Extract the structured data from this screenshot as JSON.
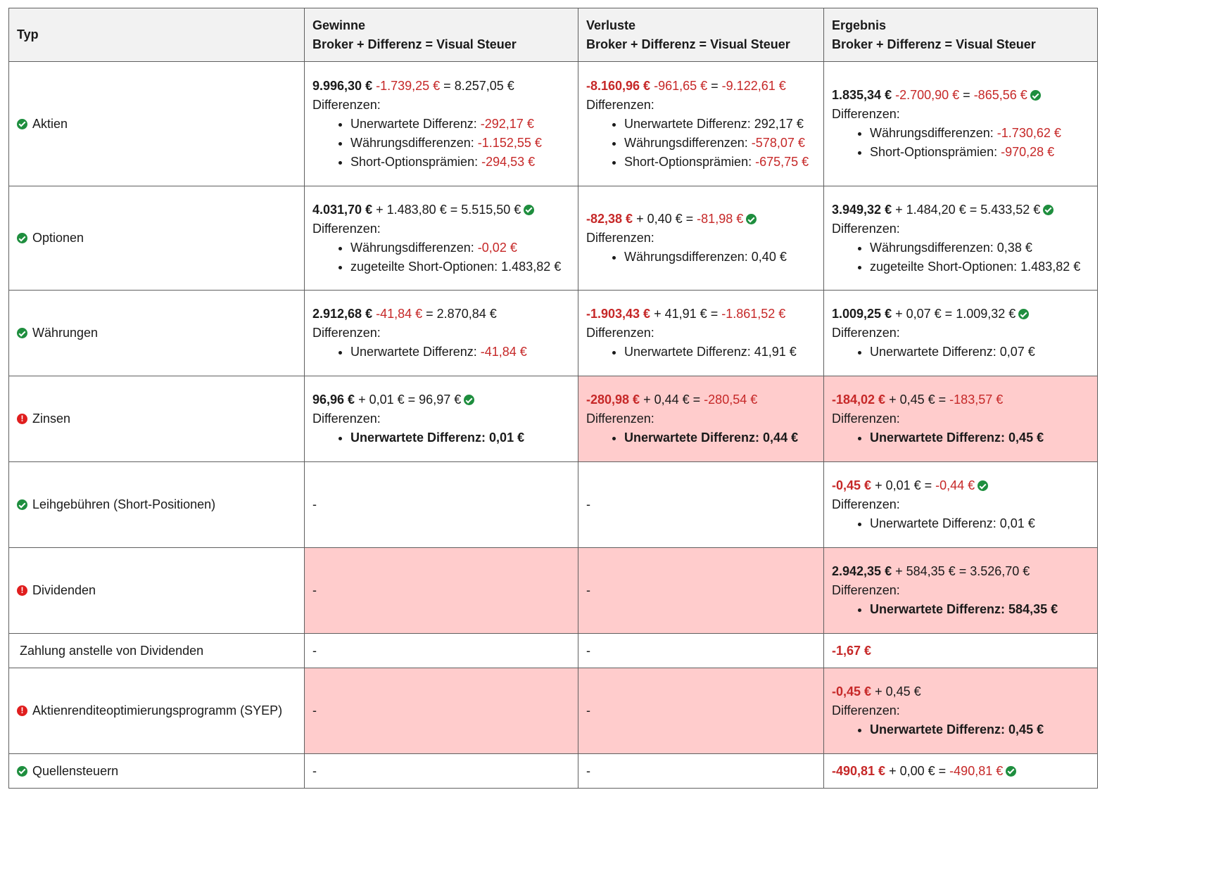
{
  "header": {
    "typ": "Typ",
    "gewinne": "Gewinne",
    "verluste": "Verluste",
    "ergebnis": "Ergebnis",
    "formula": "Broker + Differenz = Visual Steuer"
  },
  "common": {
    "differenzen": "Differenzen:",
    "dash": "-"
  },
  "rows": [
    {
      "label": "Aktien",
      "gewinne": {
        "broker": "9.996,30 €",
        "diff": "-1.739,25 €",
        "result": "8.257,05 €",
        "items": [
          {
            "label": "Unerwartete Differenz:",
            "value": "-292,17 €"
          },
          {
            "label": "Währungsdifferenzen:",
            "value": "-1.152,55 €"
          },
          {
            "label": "Short-Optionsprämien:",
            "value": "-294,53 €"
          }
        ]
      },
      "verluste": {
        "broker": "-8.160,96 €",
        "diff": "-961,65 €",
        "result": "-9.122,61 €",
        "items": [
          {
            "label": "Unerwartete Differenz:",
            "value": "292,17 €"
          },
          {
            "label": "Währungsdifferenzen:",
            "value": "-578,07 €"
          },
          {
            "label": "Short-Optionsprämien:",
            "value": "-675,75 €"
          }
        ]
      },
      "ergebnis": {
        "broker": "1.835,34 €",
        "diff": "-2.700,90 €",
        "result": "-865,56 €",
        "items": [
          {
            "label": "Währungsdifferenzen:",
            "value": "-1.730,62 €"
          },
          {
            "label": "Short-Optionsprämien:",
            "value": "-970,28 €"
          }
        ]
      }
    },
    {
      "label": "Optionen",
      "gewinne": {
        "broker": "4.031,70 €",
        "op": "+",
        "diff": "1.483,80 €",
        "result": "5.515,50 €",
        "items": [
          {
            "label": "Währungsdifferenzen:",
            "value": "-0,02 €"
          },
          {
            "label": "zugeteilte Short-Optionen:",
            "value": "1.483,82 €"
          }
        ]
      },
      "verluste": {
        "broker": "-82,38 €",
        "op": "+",
        "diff": "0,40 €",
        "result": "-81,98 €",
        "items": [
          {
            "label": "Währungsdifferenzen:",
            "value": "0,40 €"
          }
        ]
      },
      "ergebnis": {
        "broker": "3.949,32 €",
        "op": "+",
        "diff": "1.484,20 €",
        "result": "5.433,52 €",
        "items": [
          {
            "label": "Währungsdifferenzen:",
            "value": "0,38 €"
          },
          {
            "label": "zugeteilte Short-Optionen:",
            "value": "1.483,82 €"
          }
        ]
      }
    },
    {
      "label": "Währungen",
      "gewinne": {
        "broker": "2.912,68 €",
        "diff": "-41,84 €",
        "result": "2.870,84 €",
        "items": [
          {
            "label": "Unerwartete Differenz:",
            "value": "-41,84 €"
          }
        ]
      },
      "verluste": {
        "broker": "-1.903,43 €",
        "op": "+",
        "diff": "41,91 €",
        "result": "-1.861,52 €",
        "items": [
          {
            "label": "Unerwartete Differenz:",
            "value": "41,91 €"
          }
        ]
      },
      "ergebnis": {
        "broker": "1.009,25 €",
        "op": "+",
        "diff": "0,07 €",
        "result": "1.009,32 €",
        "items": [
          {
            "label": "Unerwartete Differenz:",
            "value": "0,07 €"
          }
        ]
      }
    },
    {
      "label": "Zinsen",
      "gewinne": {
        "broker": "96,96 €",
        "op": "+",
        "diff": "0,01 €",
        "result": "96,97 €",
        "items": [
          {
            "label": "Unerwartete Differenz: 0,01 €"
          }
        ]
      },
      "verluste": {
        "broker": "-280,98 €",
        "op": "+",
        "diff": "0,44 €",
        "result": "-280,54 €",
        "items": [
          {
            "label": "Unerwartete Differenz: 0,44 €"
          }
        ]
      },
      "ergebnis": {
        "broker": "-184,02 €",
        "op": "+",
        "diff": "0,45 €",
        "result": "-183,57 €",
        "items": [
          {
            "label": "Unerwartete Differenz: 0,45 €"
          }
        ]
      }
    },
    {
      "label": "Leihgebühren (Short-Positionen)",
      "ergebnis": {
        "broker": "-0,45 €",
        "op": "+",
        "diff": "0,01 €",
        "result": "-0,44 €",
        "items": [
          {
            "label": "Unerwartete Differenz:",
            "value": "0,01 €"
          }
        ]
      }
    },
    {
      "label": "Dividenden",
      "ergebnis": {
        "broker": "2.942,35 €",
        "op": "+",
        "diff": "584,35 €",
        "result": "3.526,70 €",
        "items": [
          {
            "label": "Unerwartete Differenz: 584,35 €"
          }
        ]
      }
    },
    {
      "label": "Zahlung anstelle von Dividenden",
      "ergebnis": {
        "broker": "-1,67 €"
      }
    },
    {
      "label": "Aktienrenditeoptimierungsprogramm (SYEP)",
      "ergebnis": {
        "broker": "-0,45 €",
        "op": "+",
        "diff": "0,45 €",
        "items": [
          {
            "label": "Unerwartete Differenz: 0,45 €"
          }
        ]
      }
    },
    {
      "label": "Quellensteuern",
      "ergebnis": {
        "broker": "-490,81 €",
        "op": "+",
        "diff": "0,00 €",
        "result": "-490,81 €"
      }
    }
  ]
}
